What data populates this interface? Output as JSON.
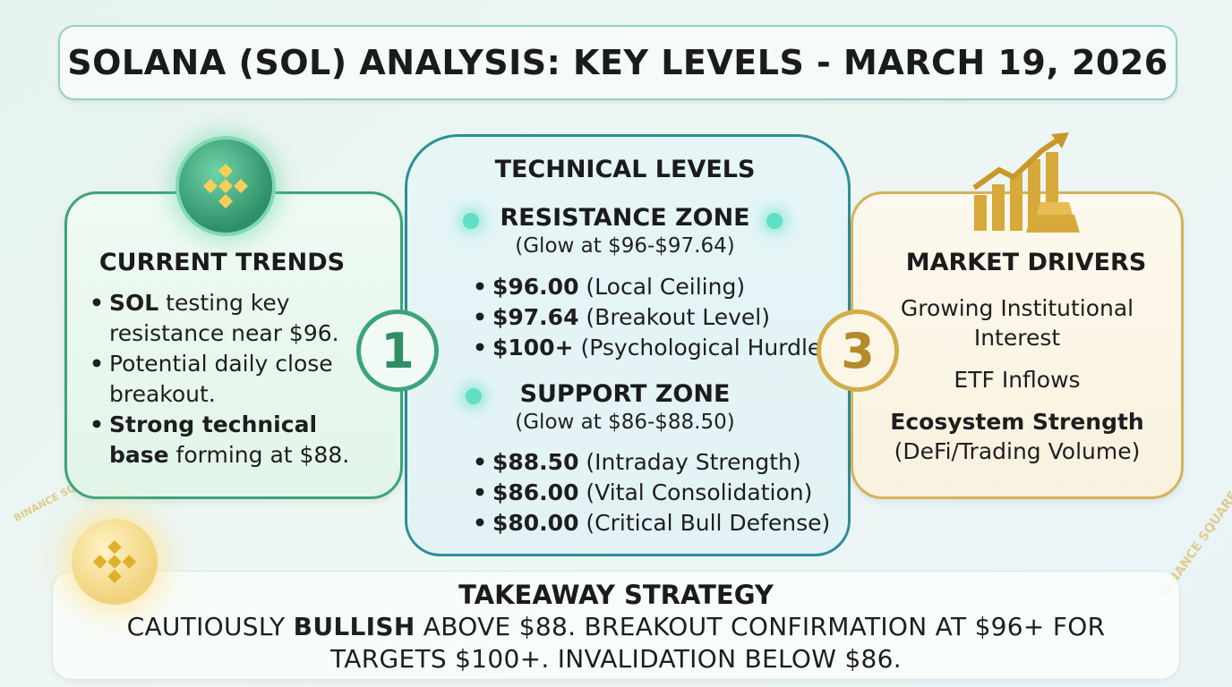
{
  "title": "SOLANA (SOL) ANALYSIS: KEY LEVELS - MARCH 19, 2026",
  "current_trends": {
    "heading": "CURRENT TRENDS",
    "badge": "1",
    "items": [
      {
        "bold": "SOL",
        "text": " testing key resistance near $96."
      },
      {
        "bold": "",
        "text": "Potential daily close breakout."
      },
      {
        "bold": "Strong technical base",
        "text": " forming at $88."
      }
    ]
  },
  "technical_levels": {
    "heading": "TECHNICAL LEVELS",
    "resistance": {
      "heading": "RESISTANCE ZONE",
      "sub": "(Glow at $96-$97.64)",
      "items": [
        {
          "bold": "$96.00",
          "text": " (Local Ceiling)"
        },
        {
          "bold": "$97.64",
          "text": " (Breakout Level)"
        },
        {
          "bold": "$100+",
          "text": " (Psychological Hurdle)"
        }
      ]
    },
    "support": {
      "heading": "SUPPORT ZONE",
      "sub": "(Glow at $86-$88.50)",
      "items": [
        {
          "bold": "$88.50",
          "text": " (Intraday Strength)"
        },
        {
          "bold": "$86.00",
          "text": " (Vital Consolidation)"
        },
        {
          "bold": "$80.00",
          "text": " (Critical Bull Defense)"
        }
      ]
    }
  },
  "market_drivers": {
    "heading": "MARKET DRIVERS",
    "badge": "3",
    "line1": "Growing Institutional",
    "line2": "Interest",
    "line3": "ETF Inflows",
    "line4": "Ecosystem Strength",
    "line5": "(DeFi/Trading Volume)"
  },
  "takeaway": {
    "heading": "TAKEAWAY STRATEGY",
    "line1_pre": "CAUTIOUSLY ",
    "line1_bold": "BULLISH",
    "line1_post": " ABOVE $88. BREAKOUT CONFIRMATION AT $96+ FOR",
    "line2": "TARGETS $100+. INVALIDATION BELOW $86."
  },
  "watermark": "BINANCE SQUARE",
  "colors": {
    "green_accent": "#3aa577",
    "teal_accent": "#2b8e98",
    "gold_accent": "#d4b25c"
  }
}
